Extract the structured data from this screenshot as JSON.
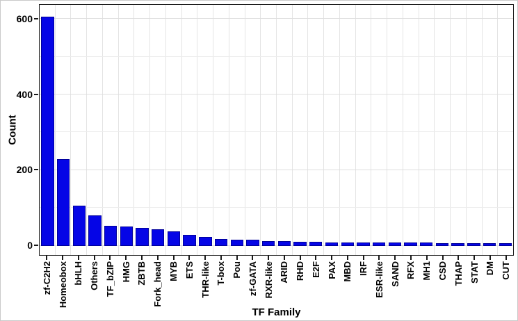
{
  "chart_data": {
    "type": "bar",
    "title": "",
    "xlabel": "TF Family",
    "ylabel": "Count",
    "categories": [
      "zf-C2H2",
      "Homeobox",
      "bHLH",
      "Others",
      "TF_bZIP",
      "HMG",
      "ZBTB",
      "Fork_head",
      "MYB",
      "ETS",
      "THR-like",
      "T-box",
      "Pou",
      "zf-GATA",
      "RXR-like",
      "ARID",
      "RHD",
      "E2F",
      "PAX",
      "MBD",
      "IRF",
      "ESR-like",
      "SAND",
      "RFX",
      "MH1",
      "CSD",
      "THAP",
      "STAT",
      "DM",
      "CUT"
    ],
    "values": [
      607,
      230,
      106,
      81,
      53,
      52,
      48,
      45,
      38,
      29,
      23,
      19,
      17,
      16,
      13,
      12,
      11,
      11,
      10,
      10,
      10,
      9,
      9,
      9,
      9,
      8,
      8,
      8,
      8,
      8
    ],
    "yticks": [
      0,
      200,
      400,
      600
    ],
    "ygrid_step": 100,
    "ymax_grid": 600,
    "ylim": [
      -24,
      641
    ],
    "grid": "on",
    "legend": "none",
    "bar_color": "#0505e6",
    "bar_border_color": "#000099",
    "orientation": "vertical",
    "sorted": "descending"
  }
}
